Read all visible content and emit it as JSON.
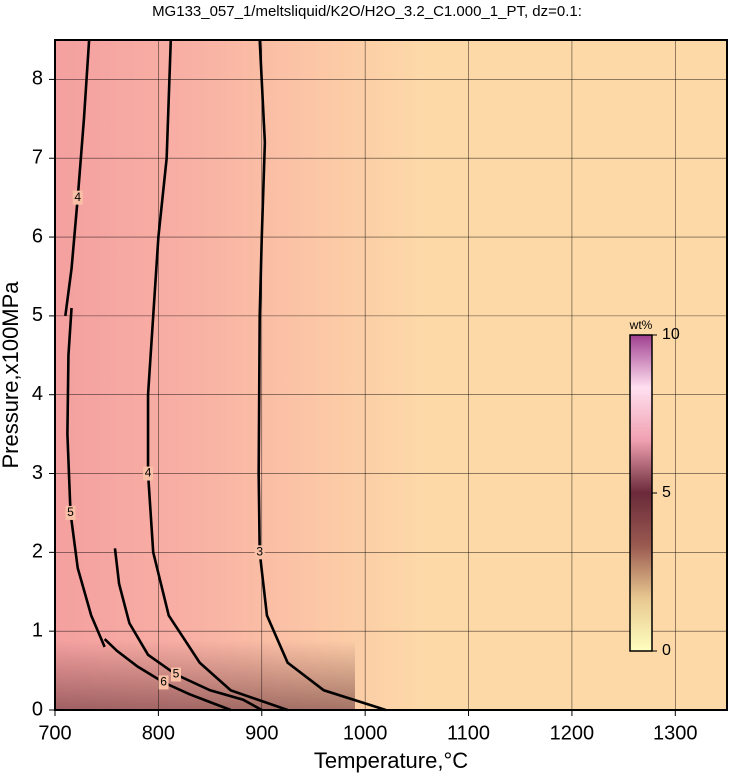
{
  "chart_data": {
    "type": "contour",
    "title": "MG133_057_1/meltsliquid/K2O/H2O_3.2_C1.000_1_PT, dz=0.1:",
    "x_label": "Temperature,°C",
    "y_label": "Pressure,x100MPa",
    "xlim": [
      700,
      1350
    ],
    "ylim": [
      0,
      8.5
    ],
    "xticks": [
      700,
      800,
      900,
      1000,
      1100,
      1200,
      1300
    ],
    "yticks": [
      0,
      1,
      2,
      3,
      4,
      5,
      6,
      7,
      8
    ],
    "grid": true,
    "contours": [
      {
        "level": 3,
        "x": [
          898,
          903,
          900,
          898,
          897,
          898,
          905,
          925,
          960,
          1020
        ],
        "y": [
          8.5,
          7.2,
          6,
          5,
          3,
          2,
          1.2,
          0.6,
          0.25,
          0
        ]
      },
      {
        "level": 4,
        "x": [
          812,
          808,
          800,
          795,
          790,
          790,
          795,
          810,
          840,
          870,
          925
        ],
        "y": [
          8.5,
          7,
          6,
          5,
          4,
          3,
          2,
          1.2,
          0.6,
          0.25,
          0
        ]
      },
      {
        "level": 4,
        "x": [
          733,
          728,
          722,
          716,
          710
        ],
        "y": [
          8.5,
          7.5,
          6.5,
          5.6,
          5
        ]
      },
      {
        "level": 5,
        "x": [
          716,
          713,
          712,
          715,
          722,
          735,
          748
        ],
        "y": [
          5.1,
          4.5,
          3.5,
          2.5,
          1.8,
          1.2,
          0.8
        ]
      },
      {
        "level": 5,
        "x": [
          758,
          762,
          772,
          790,
          817,
          850,
          882,
          900
        ],
        "y": [
          2.05,
          1.6,
          1.1,
          0.7,
          0.45,
          0.25,
          0.13,
          0
        ]
      },
      {
        "level": 6,
        "x": [
          748,
          760,
          780,
          805,
          830,
          850,
          870
        ],
        "y": [
          0.9,
          0.75,
          0.55,
          0.35,
          0.2,
          0.1,
          0
        ]
      }
    ],
    "colorbar": {
      "label": "wt%",
      "lim": [
        0,
        10
      ],
      "ticks": [
        0,
        5,
        10
      ],
      "colors": [
        "#ffffc0",
        "#e8c890",
        "#9a5a50",
        "#6a2a3a",
        "#f0a0b0",
        "#ffe0f0",
        "#a04090"
      ]
    }
  }
}
